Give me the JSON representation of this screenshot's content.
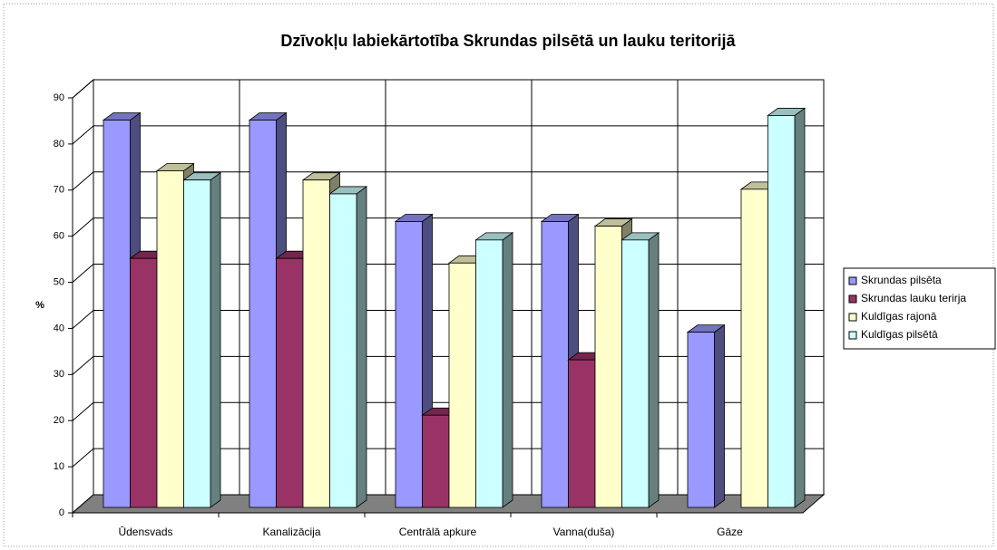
{
  "chart_data": {
    "type": "bar3d",
    "title": "Dzīvokļu labiekārtotība Skrundas pilsētā un lauku teritorijā",
    "y_label": "%",
    "categories": [
      "Ūdensvads",
      "Kanalizācija",
      "Centrālā apkure",
      "Vanna(duša)",
      "Gāze"
    ],
    "series": [
      {
        "name": "Skrundas pilsēta",
        "color": "#9999ff",
        "values": [
          84,
          84,
          62,
          62,
          38
        ]
      },
      {
        "name": "Skrundas lauku terirja",
        "color": "#993366",
        "values": [
          54,
          54,
          20,
          32,
          null
        ]
      },
      {
        "name": "Kuldīgas rajonā",
        "color": "#ffffcc",
        "values": [
          73,
          71,
          53,
          61,
          69
        ]
      },
      {
        "name": "Kuldīgas pilsētā",
        "color": "#ccffff",
        "values": [
          71,
          68,
          58,
          58,
          85
        ]
      }
    ],
    "ylim": [
      0,
      90
    ],
    "yticks": [
      0,
      10,
      20,
      30,
      40,
      50,
      60,
      70,
      80,
      90
    ],
    "grid": true,
    "legend": "right"
  }
}
